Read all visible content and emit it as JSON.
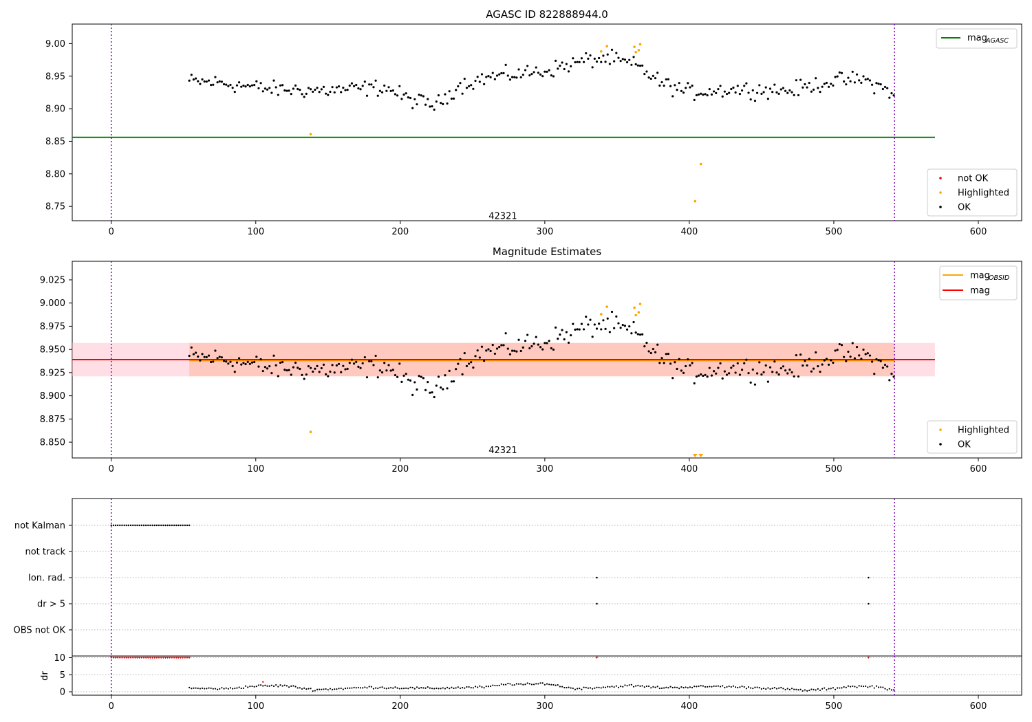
{
  "chart_data": [
    {
      "type": "scatter",
      "title": "AGASC ID 822888944.0",
      "xlim": [
        -27,
        630
      ],
      "ylim": [
        8.728,
        9.03
      ],
      "xticks": [
        0,
        100,
        200,
        300,
        400,
        500,
        600
      ],
      "yticks": [
        8.75,
        8.8,
        8.85,
        8.9,
        8.95,
        9.0
      ],
      "ytick_labels": [
        "8.75",
        "8.80",
        "8.85",
        "8.90",
        "8.95",
        "9.00"
      ],
      "vlines": [
        0,
        542
      ],
      "hline": {
        "name": "mag_AGASC",
        "y": 8.856,
        "x_range": [
          -27,
          570
        ],
        "color": "#008000"
      },
      "obsid_label": {
        "text": "42321",
        "x": 271,
        "y": 8.735
      },
      "legend_top": [
        {
          "label": "mag",
          "sub": "AGASC",
          "color": "#008000",
          "kind": "line"
        }
      ],
      "legend_bottom": [
        {
          "label": "not OK",
          "color": "#ff0000",
          "kind": "dot"
        },
        {
          "label": "Highlighted",
          "color": "#ffa500",
          "kind": "dot"
        },
        {
          "label": "OK",
          "color": "#000000",
          "kind": "dot"
        }
      ],
      "series_ok": {
        "color": "#000000",
        "x_start": 54,
        "x_end": 542,
        "step": 1.5,
        "trend_x": [
          54,
          75,
          110,
          150,
          190,
          205,
          225,
          240,
          260,
          300,
          330,
          345,
          365,
          380,
          400,
          430,
          470,
          500,
          520,
          542
        ],
        "trend_y": [
          8.942,
          8.94,
          8.93,
          8.928,
          8.933,
          8.915,
          8.905,
          8.935,
          8.948,
          8.958,
          8.975,
          8.977,
          8.965,
          8.94,
          8.925,
          8.93,
          8.928,
          8.943,
          8.945,
          8.924
        ],
        "noise": 0.009
      },
      "series_highlighted": {
        "color": "#ffa500",
        "x": [
          138,
          339,
          343,
          362,
          363,
          365,
          366,
          404,
          408
        ],
        "y": [
          8.861,
          8.988,
          8.996,
          8.995,
          8.987,
          8.99,
          8.999,
          8.758,
          8.815
        ]
      }
    },
    {
      "type": "scatter",
      "title": "Magnitude Estimates",
      "xlim": [
        -27,
        630
      ],
      "ylim": [
        8.833,
        9.045
      ],
      "xticks": [
        0,
        100,
        200,
        300,
        400,
        500,
        600
      ],
      "yticks": [
        8.85,
        8.875,
        8.9,
        8.925,
        8.95,
        8.975,
        9.0,
        9.025
      ],
      "ytick_labels": [
        "8.850",
        "8.875",
        "8.900",
        "8.925",
        "8.950",
        "8.975",
        "9.000",
        "9.025"
      ],
      "vlines": [
        0,
        542
      ],
      "band_pink": {
        "x_range": [
          -27,
          570
        ],
        "y_range": [
          8.921,
          8.957
        ],
        "color": "#ffc0cb"
      },
      "band_orange": {
        "x_range": [
          54,
          542
        ],
        "y_range": [
          8.921,
          8.957
        ],
        "color": "#ffa07a"
      },
      "mag_line": {
        "name": "mag",
        "y": 8.939,
        "x_range": [
          -27,
          570
        ],
        "color": "#ff0000"
      },
      "mag_obsid_line": {
        "name": "mag_OBSID",
        "y": 8.938,
        "x_range": [
          54,
          542
        ],
        "color": "#ffa500"
      },
      "obsid_label": {
        "text": "42321",
        "x": 271,
        "y": 8.841
      },
      "lower_limit_markers": {
        "x": [
          404,
          408
        ],
        "color": "#ffa500"
      },
      "legend_top": [
        {
          "label": "mag",
          "sub": "OBSID",
          "color": "#ffa500",
          "kind": "line"
        },
        {
          "label": "mag",
          "sub": "",
          "color": "#ff0000",
          "kind": "line"
        }
      ],
      "legend_bottom": [
        {
          "label": "Highlighted",
          "color": "#ffa500",
          "kind": "dot"
        },
        {
          "label": "OK",
          "color": "#000000",
          "kind": "dot"
        }
      ],
      "series_highlighted": {
        "color": "#ffa500",
        "x": [
          138,
          339,
          343,
          362,
          363,
          365,
          366
        ],
        "y": [
          8.861,
          8.988,
          8.996,
          8.995,
          8.987,
          8.99,
          8.999
        ]
      }
    },
    {
      "type": "scatter",
      "title": "",
      "xlim": [
        -27,
        630
      ],
      "flag_rows": [
        "not Kalman",
        "not track",
        "Ion. rad.",
        "dr > 5",
        "OBS not OK"
      ],
      "vlines": [
        0,
        542
      ],
      "flags": {
        "not Kalman": {
          "ranges": [
            [
              0,
              54
            ]
          ],
          "points": []
        },
        "not track": {
          "ranges": [],
          "points": []
        },
        "Ion. rad.": {
          "ranges": [],
          "points": [
            336,
            524
          ]
        },
        "dr > 5": {
          "ranges": [],
          "points": [
            336,
            524
          ]
        },
        "OBS not OK": {
          "ranges": [],
          "points": []
        }
      }
    },
    {
      "type": "scatter",
      "title": "",
      "ylabel": "dr",
      "xlim": [
        -27,
        630
      ],
      "ylim": [
        -1,
        10.5
      ],
      "xticks": [
        0,
        100,
        200,
        300,
        400,
        500,
        600
      ],
      "xtick_labels": [
        "0",
        "100",
        "200",
        "300",
        "400",
        "500",
        "600"
      ],
      "yticks": [
        0,
        5,
        10
      ],
      "ytick_labels": [
        "0",
        "5",
        "10"
      ],
      "vlines": [
        0,
        542
      ],
      "capped_red": {
        "ranges": [
          [
            0,
            54
          ]
        ],
        "points": [
          336,
          524
        ],
        "y": 10,
        "color": "#ff0000"
      },
      "red_points": {
        "x": [
          105
        ],
        "y": [
          2.9
        ]
      },
      "dr_trend_x": [
        54,
        80,
        100,
        120,
        140,
        180,
        220,
        260,
        275,
        290,
        300,
        320,
        360,
        380,
        420,
        460,
        480,
        500,
        510,
        530,
        542
      ],
      "dr_trend_y": [
        1.0,
        0.9,
        1.7,
        1.8,
        0.6,
        1.3,
        1.0,
        1.4,
        2.3,
        2.1,
        2.5,
        0.9,
        1.8,
        1.2,
        1.6,
        1.0,
        0.4,
        0.9,
        1.6,
        1.5,
        0.5
      ]
    }
  ]
}
